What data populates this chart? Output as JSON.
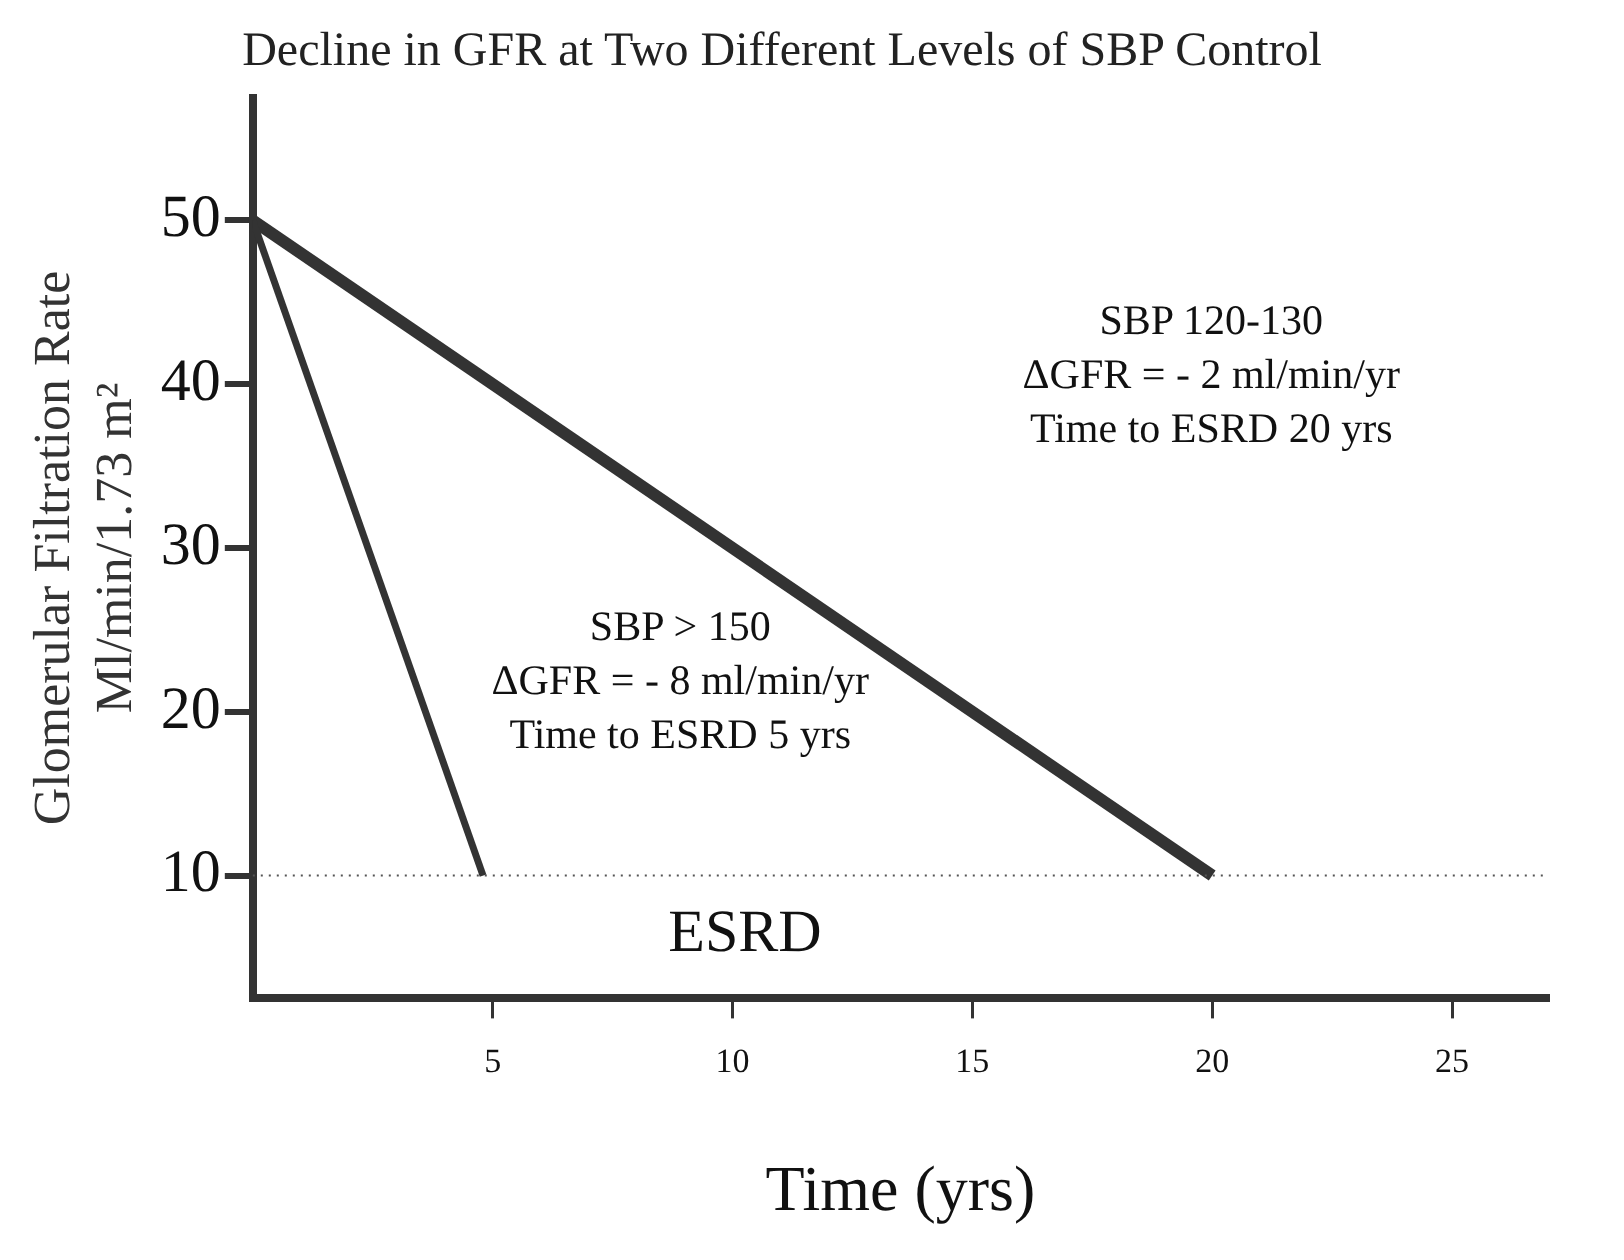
{
  "chart_data": {
    "type": "line",
    "title": "Decline in GFR at Two Different Levels of SBP Control",
    "xlabel": "Time (yrs)",
    "ylabel": "Glomerular Filtration Rate\nMl/min/1.73 m²",
    "series": [
      {
        "color": "#333333",
        "x": [
          0,
          4.8
        ],
        "values": [
          50,
          10
        ]
      },
      {
        "color": "#333333",
        "x": [
          0,
          20
        ],
        "values": [
          50,
          10
        ]
      }
    ],
    "xlim": [
      0,
      27
    ],
    "xticks": [
      5,
      10,
      15,
      20,
      25
    ],
    "ylim": [
      2.5,
      57.5
    ],
    "yticks": [
      10,
      20,
      30,
      40,
      50
    ],
    "ref_lines": [
      {
        "axis": "y",
        "value": 10,
        "line_style": "dotted",
        "color": "#555555"
      }
    ],
    "annotations": [
      "SBP 120-130\nΔGFR = - 2 ml/min/yr\nTime to ESRD 20 yrs",
      "SBP > 150\nΔGFR = - 8 ml/min/yr\nTime to ESRD 5 yrs",
      "ESRD"
    ],
    "grid": false,
    "legend": false,
    "marker": "none",
    "line_style": "solid"
  }
}
